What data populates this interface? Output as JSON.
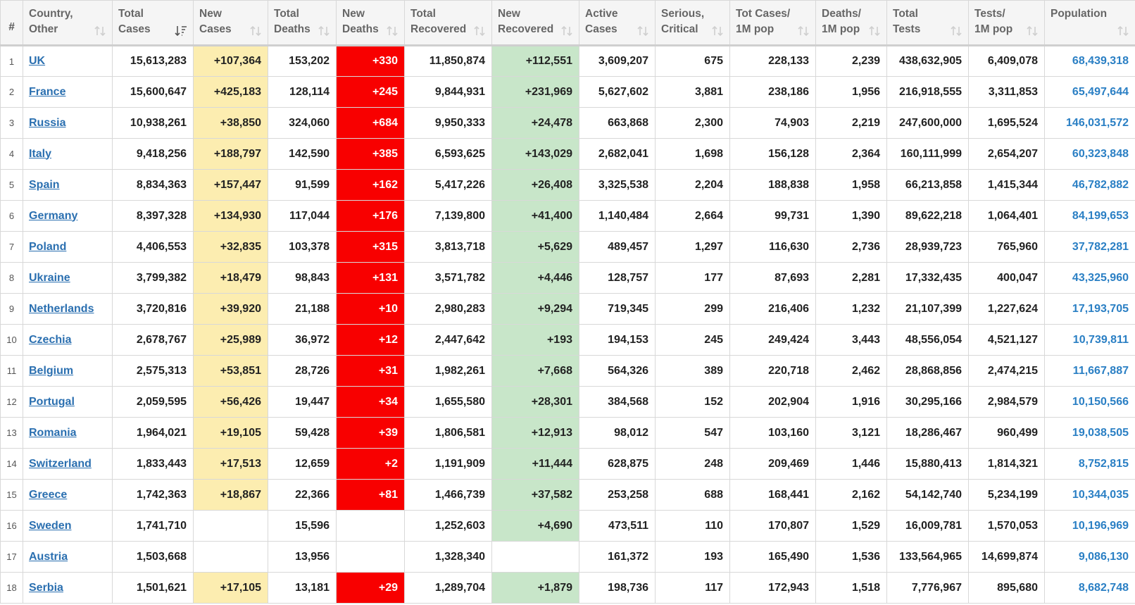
{
  "table": {
    "headers": [
      {
        "line1": "#",
        "line2": ""
      },
      {
        "line1": "Country,",
        "line2": "Other"
      },
      {
        "line1": "Total",
        "line2": "Cases"
      },
      {
        "line1": "New",
        "line2": "Cases"
      },
      {
        "line1": "Total",
        "line2": "Deaths"
      },
      {
        "line1": "New",
        "line2": "Deaths"
      },
      {
        "line1": "Total",
        "line2": "Recovered"
      },
      {
        "line1": "New",
        "line2": "Recovered"
      },
      {
        "line1": "Active",
        "line2": "Cases"
      },
      {
        "line1": "Serious,",
        "line2": "Critical"
      },
      {
        "line1": "Tot Cases/",
        "line2": "1M pop"
      },
      {
        "line1": "Deaths/",
        "line2": "1M pop"
      },
      {
        "line1": "Total",
        "line2": "Tests"
      },
      {
        "line1": "Tests/",
        "line2": "1M pop"
      },
      {
        "line1": "Population",
        "line2": ""
      }
    ],
    "sorted_column": "Total Cases",
    "colors": {
      "new_cases_bg": "#fcedb0",
      "new_deaths_bg": "#f80000",
      "new_recovered_bg": "#c8e6c9",
      "country_link": "#2a6fb0",
      "population_text": "#2a7fc4"
    },
    "rows": [
      {
        "idx": "1",
        "country": "UK",
        "total_cases": "15,613,283",
        "new_cases": "+107,364",
        "total_deaths": "153,202",
        "new_deaths": "+330",
        "total_recovered": "11,850,874",
        "new_recovered": "+112,551",
        "active_cases": "3,609,207",
        "serious": "675",
        "cases_per_1m": "228,133",
        "deaths_per_1m": "2,239",
        "total_tests": "438,632,905",
        "tests_per_1m": "6,409,078",
        "population": "68,439,318"
      },
      {
        "idx": "2",
        "country": "France",
        "total_cases": "15,600,647",
        "new_cases": "+425,183",
        "total_deaths": "128,114",
        "new_deaths": "+245",
        "total_recovered": "9,844,931",
        "new_recovered": "+231,969",
        "active_cases": "5,627,602",
        "serious": "3,881",
        "cases_per_1m": "238,186",
        "deaths_per_1m": "1,956",
        "total_tests": "216,918,555",
        "tests_per_1m": "3,311,853",
        "population": "65,497,644"
      },
      {
        "idx": "3",
        "country": "Russia",
        "total_cases": "10,938,261",
        "new_cases": "+38,850",
        "total_deaths": "324,060",
        "new_deaths": "+684",
        "total_recovered": "9,950,333",
        "new_recovered": "+24,478",
        "active_cases": "663,868",
        "serious": "2,300",
        "cases_per_1m": "74,903",
        "deaths_per_1m": "2,219",
        "total_tests": "247,600,000",
        "tests_per_1m": "1,695,524",
        "population": "146,031,572"
      },
      {
        "idx": "4",
        "country": "Italy",
        "total_cases": "9,418,256",
        "new_cases": "+188,797",
        "total_deaths": "142,590",
        "new_deaths": "+385",
        "total_recovered": "6,593,625",
        "new_recovered": "+143,029",
        "active_cases": "2,682,041",
        "serious": "1,698",
        "cases_per_1m": "156,128",
        "deaths_per_1m": "2,364",
        "total_tests": "160,111,999",
        "tests_per_1m": "2,654,207",
        "population": "60,323,848"
      },
      {
        "idx": "5",
        "country": "Spain",
        "total_cases": "8,834,363",
        "new_cases": "+157,447",
        "total_deaths": "91,599",
        "new_deaths": "+162",
        "total_recovered": "5,417,226",
        "new_recovered": "+26,408",
        "active_cases": "3,325,538",
        "serious": "2,204",
        "cases_per_1m": "188,838",
        "deaths_per_1m": "1,958",
        "total_tests": "66,213,858",
        "tests_per_1m": "1,415,344",
        "population": "46,782,882"
      },
      {
        "idx": "6",
        "country": "Germany",
        "total_cases": "8,397,328",
        "new_cases": "+134,930",
        "total_deaths": "117,044",
        "new_deaths": "+176",
        "total_recovered": "7,139,800",
        "new_recovered": "+41,400",
        "active_cases": "1,140,484",
        "serious": "2,664",
        "cases_per_1m": "99,731",
        "deaths_per_1m": "1,390",
        "total_tests": "89,622,218",
        "tests_per_1m": "1,064,401",
        "population": "84,199,653"
      },
      {
        "idx": "7",
        "country": "Poland",
        "total_cases": "4,406,553",
        "new_cases": "+32,835",
        "total_deaths": "103,378",
        "new_deaths": "+315",
        "total_recovered": "3,813,718",
        "new_recovered": "+5,629",
        "active_cases": "489,457",
        "serious": "1,297",
        "cases_per_1m": "116,630",
        "deaths_per_1m": "2,736",
        "total_tests": "28,939,723",
        "tests_per_1m": "765,960",
        "population": "37,782,281"
      },
      {
        "idx": "8",
        "country": "Ukraine",
        "total_cases": "3,799,382",
        "new_cases": "+18,479",
        "total_deaths": "98,843",
        "new_deaths": "+131",
        "total_recovered": "3,571,782",
        "new_recovered": "+4,446",
        "active_cases": "128,757",
        "serious": "177",
        "cases_per_1m": "87,693",
        "deaths_per_1m": "2,281",
        "total_tests": "17,332,435",
        "tests_per_1m": "400,047",
        "population": "43,325,960"
      },
      {
        "idx": "9",
        "country": "Netherlands",
        "total_cases": "3,720,816",
        "new_cases": "+39,920",
        "total_deaths": "21,188",
        "new_deaths": "+10",
        "total_recovered": "2,980,283",
        "new_recovered": "+9,294",
        "active_cases": "719,345",
        "serious": "299",
        "cases_per_1m": "216,406",
        "deaths_per_1m": "1,232",
        "total_tests": "21,107,399",
        "tests_per_1m": "1,227,624",
        "population": "17,193,705"
      },
      {
        "idx": "10",
        "country": "Czechia",
        "total_cases": "2,678,767",
        "new_cases": "+25,989",
        "total_deaths": "36,972",
        "new_deaths": "+12",
        "total_recovered": "2,447,642",
        "new_recovered": "+193",
        "active_cases": "194,153",
        "serious": "245",
        "cases_per_1m": "249,424",
        "deaths_per_1m": "3,443",
        "total_tests": "48,556,054",
        "tests_per_1m": "4,521,127",
        "population": "10,739,811"
      },
      {
        "idx": "11",
        "country": "Belgium",
        "total_cases": "2,575,313",
        "new_cases": "+53,851",
        "total_deaths": "28,726",
        "new_deaths": "+31",
        "total_recovered": "1,982,261",
        "new_recovered": "+7,668",
        "active_cases": "564,326",
        "serious": "389",
        "cases_per_1m": "220,718",
        "deaths_per_1m": "2,462",
        "total_tests": "28,868,856",
        "tests_per_1m": "2,474,215",
        "population": "11,667,887"
      },
      {
        "idx": "12",
        "country": "Portugal",
        "total_cases": "2,059,595",
        "new_cases": "+56,426",
        "total_deaths": "19,447",
        "new_deaths": "+34",
        "total_recovered": "1,655,580",
        "new_recovered": "+28,301",
        "active_cases": "384,568",
        "serious": "152",
        "cases_per_1m": "202,904",
        "deaths_per_1m": "1,916",
        "total_tests": "30,295,166",
        "tests_per_1m": "2,984,579",
        "population": "10,150,566"
      },
      {
        "idx": "13",
        "country": "Romania",
        "total_cases": "1,964,021",
        "new_cases": "+19,105",
        "total_deaths": "59,428",
        "new_deaths": "+39",
        "total_recovered": "1,806,581",
        "new_recovered": "+12,913",
        "active_cases": "98,012",
        "serious": "547",
        "cases_per_1m": "103,160",
        "deaths_per_1m": "3,121",
        "total_tests": "18,286,467",
        "tests_per_1m": "960,499",
        "population": "19,038,505"
      },
      {
        "idx": "14",
        "country": "Switzerland",
        "total_cases": "1,833,443",
        "new_cases": "+17,513",
        "total_deaths": "12,659",
        "new_deaths": "+2",
        "total_recovered": "1,191,909",
        "new_recovered": "+11,444",
        "active_cases": "628,875",
        "serious": "248",
        "cases_per_1m": "209,469",
        "deaths_per_1m": "1,446",
        "total_tests": "15,880,413",
        "tests_per_1m": "1,814,321",
        "population": "8,752,815"
      },
      {
        "idx": "15",
        "country": "Greece",
        "total_cases": "1,742,363",
        "new_cases": "+18,867",
        "total_deaths": "22,366",
        "new_deaths": "+81",
        "total_recovered": "1,466,739",
        "new_recovered": "+37,582",
        "active_cases": "253,258",
        "serious": "688",
        "cases_per_1m": "168,441",
        "deaths_per_1m": "2,162",
        "total_tests": "54,142,740",
        "tests_per_1m": "5,234,199",
        "population": "10,344,035"
      },
      {
        "idx": "16",
        "country": "Sweden",
        "total_cases": "1,741,710",
        "new_cases": "",
        "total_deaths": "15,596",
        "new_deaths": "",
        "total_recovered": "1,252,603",
        "new_recovered": "+4,690",
        "active_cases": "473,511",
        "serious": "110",
        "cases_per_1m": "170,807",
        "deaths_per_1m": "1,529",
        "total_tests": "16,009,781",
        "tests_per_1m": "1,570,053",
        "population": "10,196,969"
      },
      {
        "idx": "17",
        "country": "Austria",
        "total_cases": "1,503,668",
        "new_cases": "",
        "total_deaths": "13,956",
        "new_deaths": "",
        "total_recovered": "1,328,340",
        "new_recovered": "",
        "active_cases": "161,372",
        "serious": "193",
        "cases_per_1m": "165,490",
        "deaths_per_1m": "1,536",
        "total_tests": "133,564,965",
        "tests_per_1m": "14,699,874",
        "population": "9,086,130"
      },
      {
        "idx": "18",
        "country": "Serbia",
        "total_cases": "1,501,621",
        "new_cases": "+17,105",
        "total_deaths": "13,181",
        "new_deaths": "+29",
        "total_recovered": "1,289,704",
        "new_recovered": "+1,879",
        "active_cases": "198,736",
        "serious": "117",
        "cases_per_1m": "172,943",
        "deaths_per_1m": "1,518",
        "total_tests": "7,776,967",
        "tests_per_1m": "895,680",
        "population": "8,682,748"
      }
    ]
  }
}
